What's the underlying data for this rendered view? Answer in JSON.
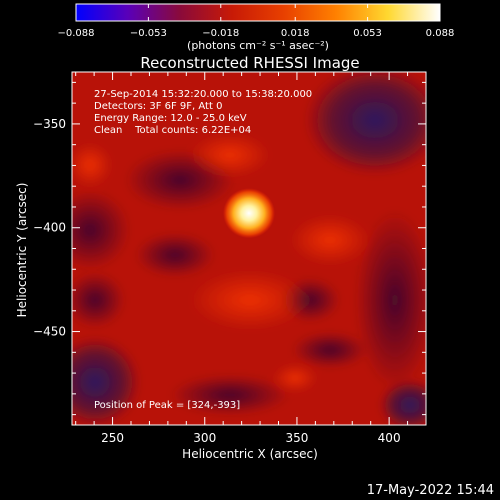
{
  "chart_data": {
    "type": "heatmap",
    "title": "Reconstructed RHESSI Image",
    "xlabel": "Heliocentric X (arcsec)",
    "ylabel": "Heliocentric Y (arcsec)",
    "xlim": [
      228,
      420
    ],
    "ylim": [
      -495,
      -325
    ],
    "x_ticks": [
      250,
      300,
      350,
      400
    ],
    "y_ticks": [
      -350,
      -400,
      -450
    ],
    "x_tick_labels": [
      "250",
      "300",
      "350",
      "400"
    ],
    "y_tick_labels": [
      "−350",
      "−400",
      "−450"
    ],
    "colorbar": {
      "range": [
        -0.088,
        0.088
      ],
      "ticks": [
        -0.088,
        -0.053,
        -0.018,
        0.018,
        0.053,
        0.088
      ],
      "tick_labels": [
        "−0.088",
        "−0.053",
        "−0.018",
        "0.018",
        "0.053",
        "0.088"
      ],
      "unit_label": "(photons cm⁻² s⁻¹ asec⁻²)",
      "colormap": [
        "#0000ff",
        "#5a00b8",
        "#8a0a3a",
        "#c81a06",
        "#e84000",
        "#ff8000",
        "#ffd830",
        "#ffffff"
      ]
    },
    "annotations": [
      "27-Sep-2014 15:32:20.000 to 15:38:20.000",
      "Detectors: 3F 6F 9F, Att 0",
      "Energy Range: 12.0 - 25.0 keV",
      "Clean    Total counts: 6.22E+04"
    ],
    "peak_label": "Position of Peak = [324,-393]",
    "peak": {
      "x": 324,
      "y": -393,
      "value": 0.088
    },
    "sources": [
      {
        "x": 324,
        "y": -393,
        "amp": 0.1,
        "sigma": 6
      },
      {
        "x": 236,
        "y": -358,
        "amp": 0.012,
        "sigma": 9
      },
      {
        "x": 345,
        "y": -480,
        "amp": 0.01,
        "sigma": 9
      }
    ],
    "background_level": 0.028
  },
  "footer": {
    "timestamp": "17-May-2022 15:44"
  }
}
